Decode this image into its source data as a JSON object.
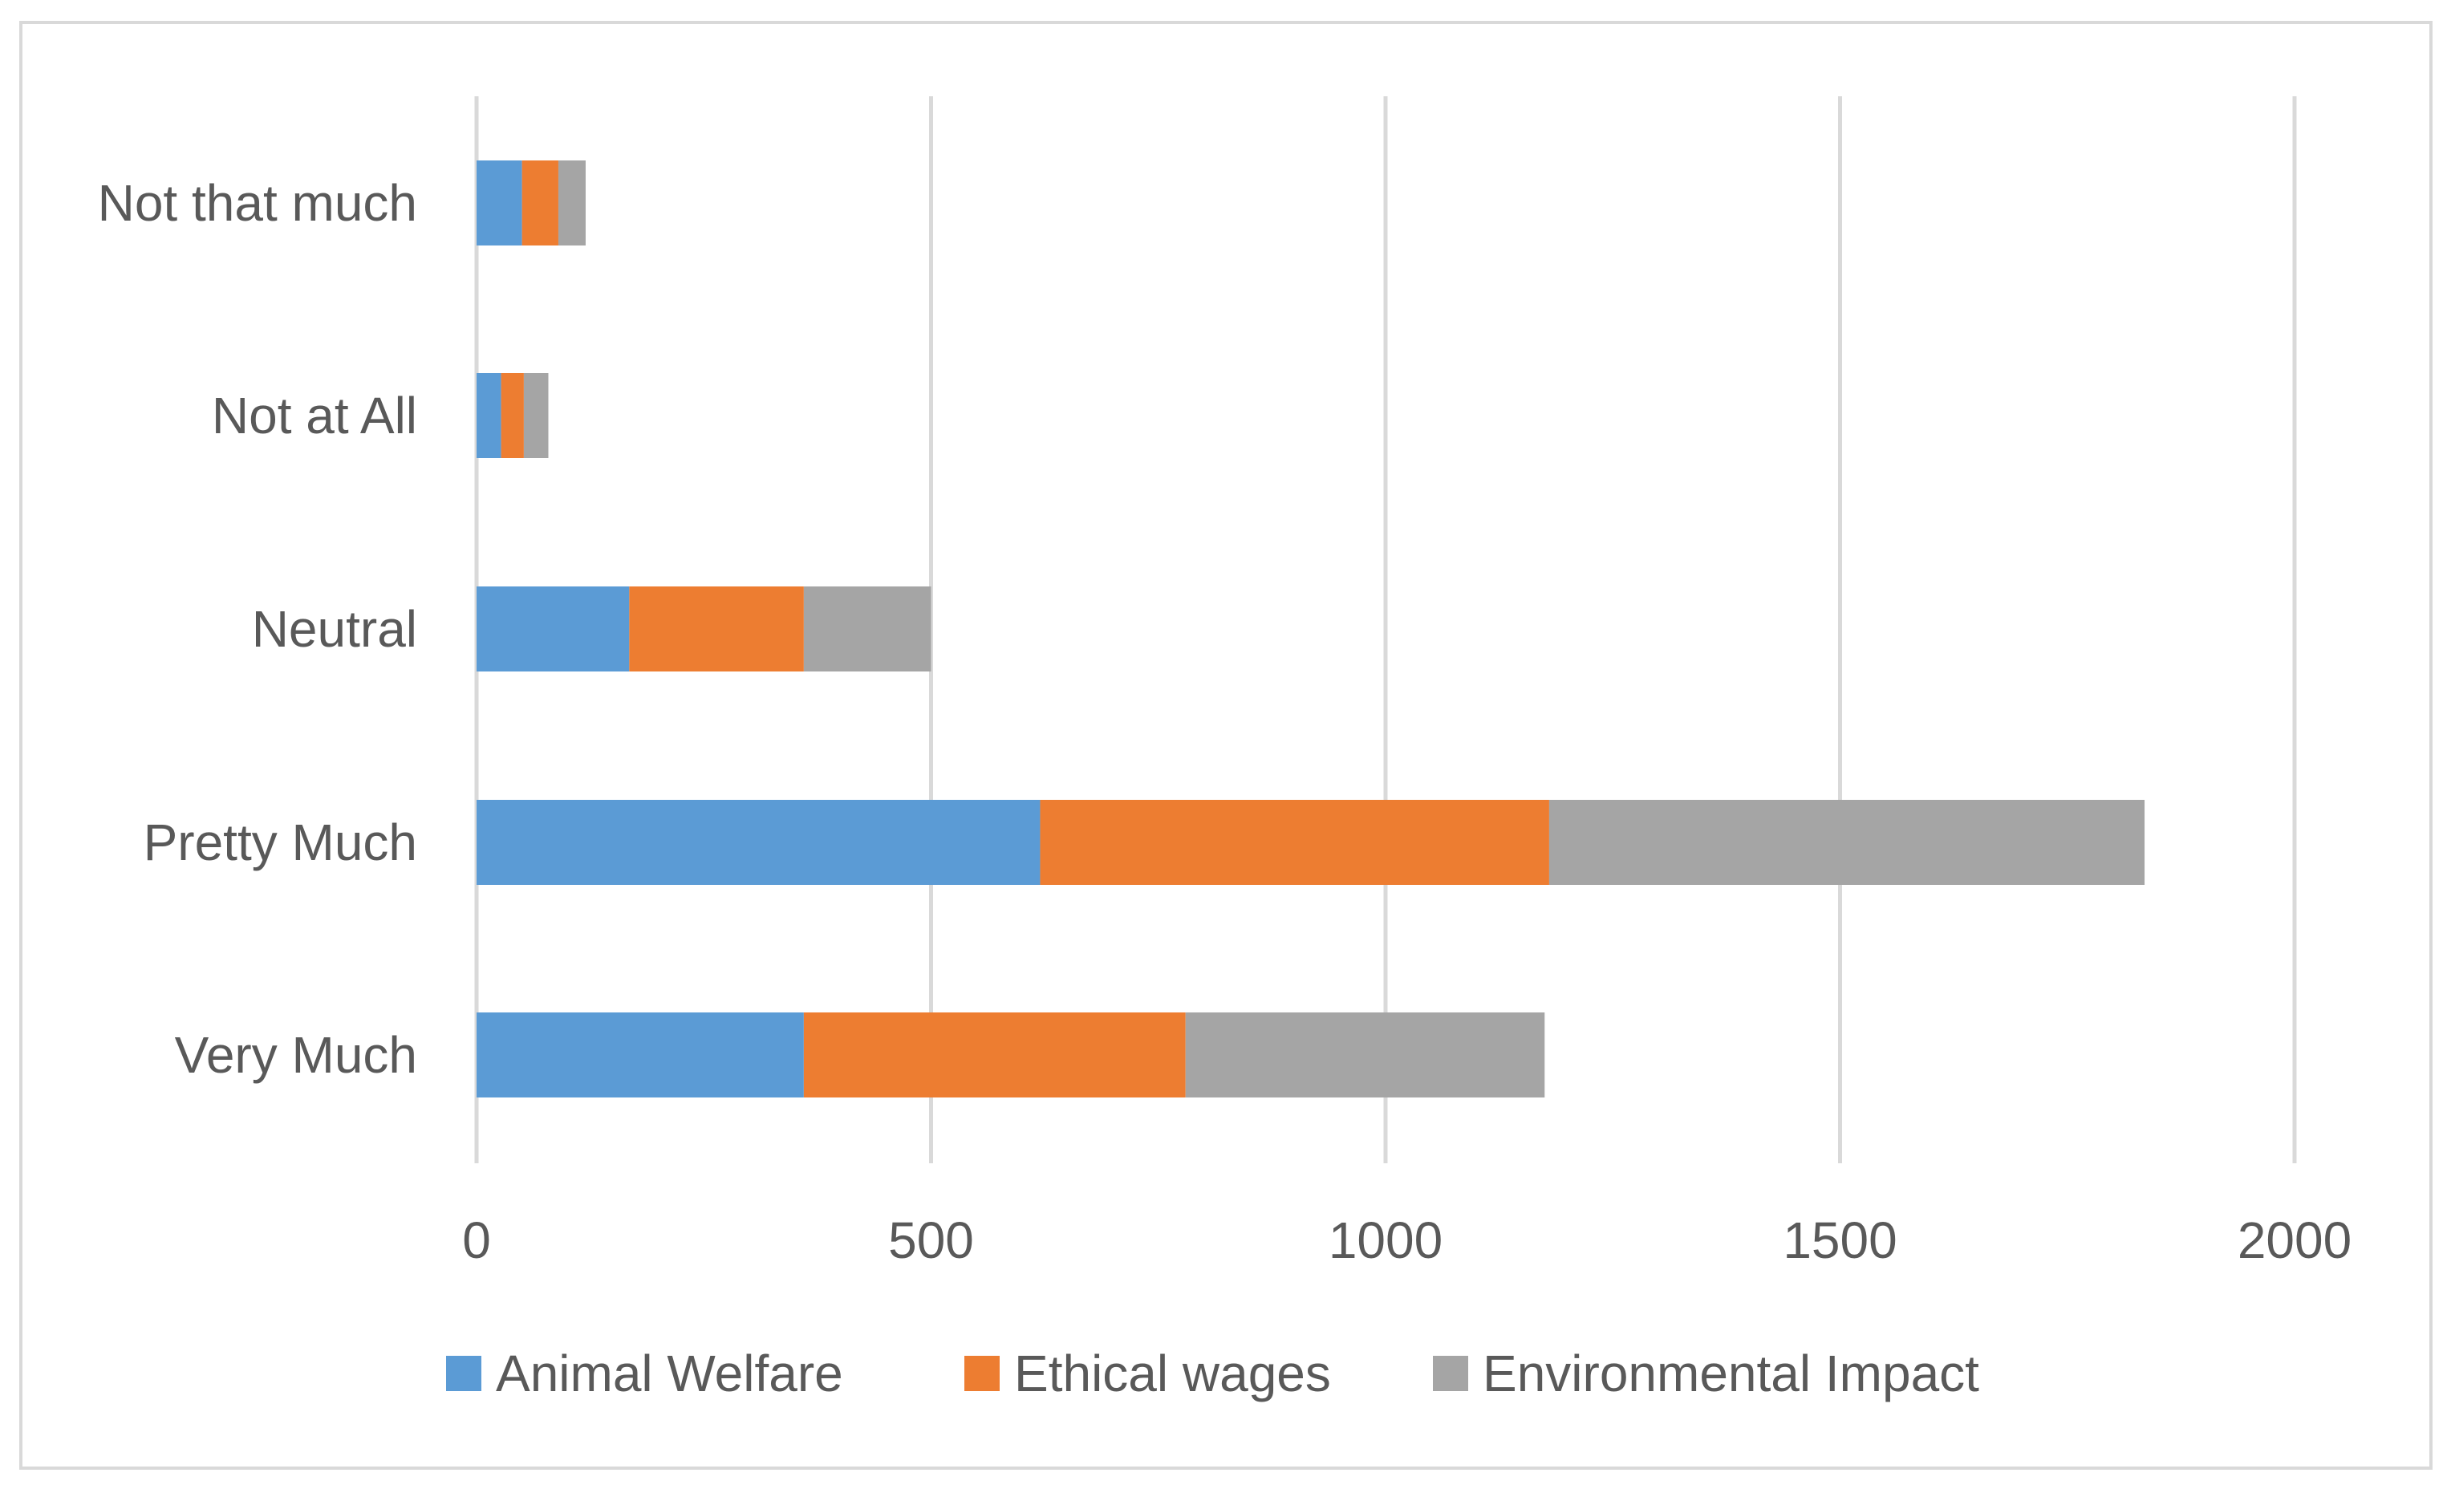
{
  "chart_data": {
    "type": "bar",
    "orientation": "horizontal",
    "stacked": true,
    "title": "",
    "xlabel": "",
    "ylabel": "",
    "xlim": [
      0,
      2000
    ],
    "ticks": [
      0,
      500,
      1000,
      1500,
      2000
    ],
    "tick_labels": [
      "0",
      "500",
      "1000",
      "1500",
      "2000"
    ],
    "grid": true,
    "legend_position": "bottom",
    "categories": [
      "Not that much",
      "Not at All",
      "Neutral",
      "Pretty Much",
      "Very Much"
    ],
    "series": [
      {
        "name": "Animal Welfare",
        "color": "#5B9BD5",
        "values": [
          50,
          27,
          168,
          620,
          360
        ]
      },
      {
        "name": "Ethical wages",
        "color": "#ED7D31",
        "values": [
          40,
          25,
          192,
          560,
          420
        ]
      },
      {
        "name": "Environmental Impact",
        "color": "#A5A5A5",
        "values": [
          30,
          27,
          140,
          655,
          395
        ]
      }
    ]
  }
}
